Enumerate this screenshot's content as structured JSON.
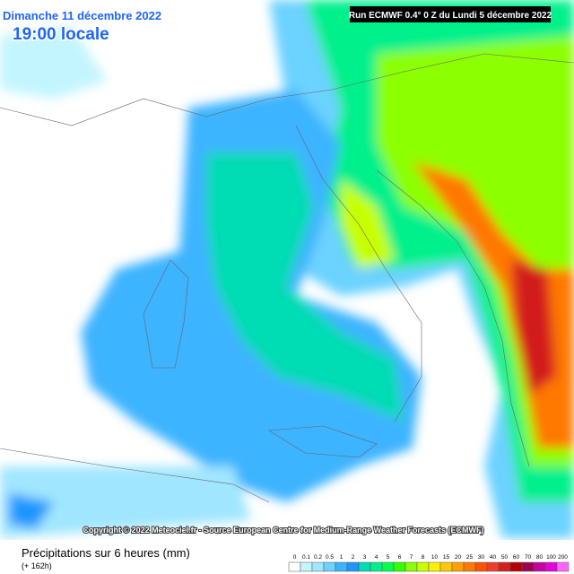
{
  "header": {
    "date": "Dimanche 11 décembre 2022",
    "time": "19:00 locale",
    "run": "Run ECMWF 0.4° 0 Z du Lundi 5 décembre 2022"
  },
  "copyright": "Copyright © 2022 Meteociel.fr - Source European Centre for Medium-Range Weather Forecasts (ECMWF)",
  "footer": {
    "title": "Précipitations sur 6 heures (mm)",
    "lead": "(+ 162h)"
  },
  "legend": [
    {
      "label": "0",
      "color": "#ffffff"
    },
    {
      "label": "0.1",
      "color": "#c3f5ff"
    },
    {
      "label": "0.2",
      "color": "#a0e6ff"
    },
    {
      "label": "0.5",
      "color": "#6cd2ff"
    },
    {
      "label": "1",
      "color": "#3cb4ff"
    },
    {
      "label": "2",
      "color": "#1e96ff"
    },
    {
      "label": "3",
      "color": "#00dcb4"
    },
    {
      "label": "4",
      "color": "#00f08c"
    },
    {
      "label": "5",
      "color": "#00ff50"
    },
    {
      "label": "6",
      "color": "#32ff00"
    },
    {
      "label": "7",
      "color": "#8cff00"
    },
    {
      "label": "8",
      "color": "#c8ff00"
    },
    {
      "label": "10",
      "color": "#fff000"
    },
    {
      "label": "15",
      "color": "#ffc800"
    },
    {
      "label": "20",
      "color": "#ffa000"
    },
    {
      "label": "25",
      "color": "#ff7800"
    },
    {
      "label": "30",
      "color": "#ff5000"
    },
    {
      "label": "40",
      "color": "#f03c28"
    },
    {
      "label": "50",
      "color": "#d21e1e"
    },
    {
      "label": "60",
      "color": "#b40000"
    },
    {
      "label": "70",
      "color": "#a00050"
    },
    {
      "label": "80",
      "color": "#c800a0"
    },
    {
      "label": "100",
      "color": "#e600dc"
    },
    {
      "label": "200",
      "color": "#ff64ff"
    }
  ]
}
